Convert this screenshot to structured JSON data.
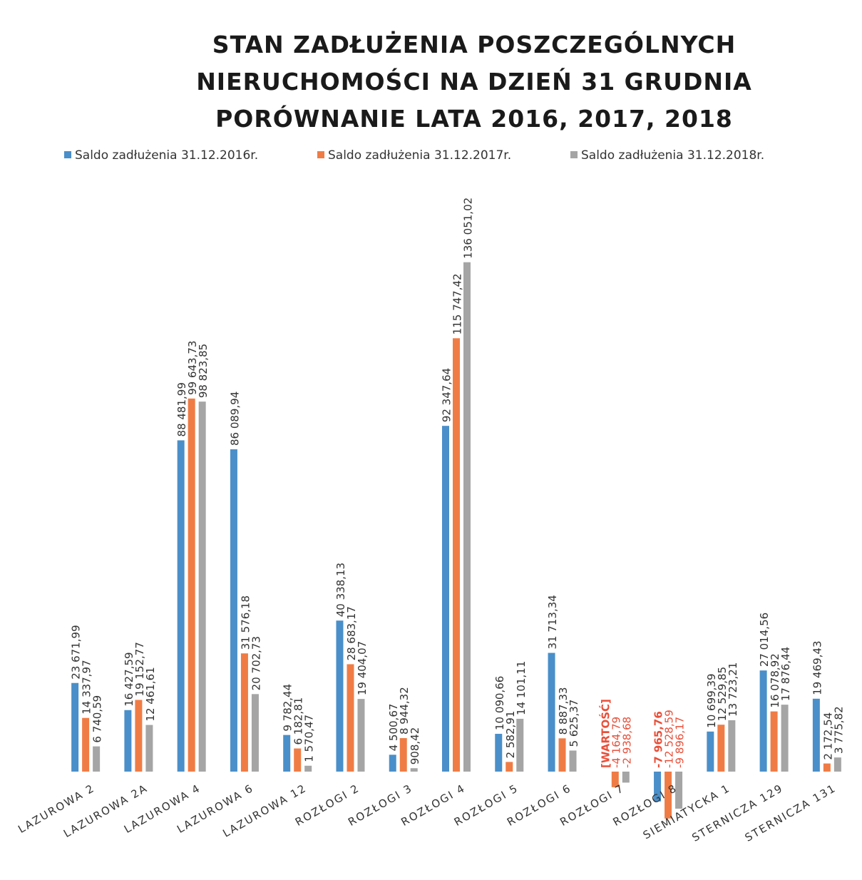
{
  "chart_data": {
    "type": "bar",
    "title": [
      "STAN ZADŁUŻENIA POSZCZEGÓLNYCH",
      "NIERUCHOMOŚCI NA DZIEŃ 31 GRUDNIA",
      "PORÓWNANIE LATA 2016, 2017, 2018"
    ],
    "categories": [
      "LAZUROWA 2",
      "LAZUROWA 2A",
      "LAZUROWA 4",
      "LAZUROWA 6",
      "LAZUROWA 12",
      "ROZŁOGI 2",
      "ROZŁOGI 3",
      "ROZŁOGI 4",
      "ROZŁOGI 5",
      "ROZŁOGI 6",
      "ROZŁOGI 7",
      "ROZŁOGI 8",
      "SIEMIATYCKA 1",
      "STERNICZA 129",
      "STERNICZA 131"
    ],
    "series": [
      {
        "name": "Saldo zadłużenia 31.12.2016r.",
        "color": "#4a8fc9",
        "values": [
          23671.99,
          16427.59,
          88481.99,
          86089.94,
          9782.44,
          40338.13,
          4500.67,
          92347.64,
          10090.66,
          31713.34,
          null,
          -7965.76,
          10699.39,
          27014.56,
          19469.43
        ],
        "value_labels": [
          "23 671,99",
          "16 427,59",
          "88 481,99",
          "86 089,94",
          "9 782,44",
          "40 338,13",
          "4 500,67",
          "92 347,64",
          "10 090,66",
          "31 713,34",
          "[WARTOŚĆ]",
          "-7 965,76",
          "10 699,39",
          "27 014,56",
          "19 469,43"
        ]
      },
      {
        "name": "Saldo zadłużenia 31.12.2017r.",
        "color": "#f07c45",
        "values": [
          14337.97,
          19152.77,
          99643.73,
          31576.18,
          6182.81,
          28683.17,
          8944.32,
          115747.42,
          2582.91,
          8887.33,
          -4164.79,
          -12528.59,
          12529.85,
          16078.92,
          2172.54
        ],
        "value_labels": [
          "14 337,97",
          "19 152,77",
          "99 643,73",
          "31 576,18",
          "6 182,81",
          "28 683,17",
          "8 944,32",
          "115 747,42",
          "2 582,91",
          "8 887,33",
          "-4 164,79",
          "-12 528,59",
          "12 529,85",
          "16 078,92",
          "2 172,54"
        ]
      },
      {
        "name": "Saldo zadłużenia 31.12.2018r.",
        "color": "#a5a5a5",
        "values": [
          6740.59,
          12461.61,
          98823.85,
          20702.73,
          1570.47,
          19404.07,
          908.42,
          136051.02,
          14101.11,
          5625.37,
          -2938.68,
          -9896.17,
          13723.21,
          17876.44,
          3775.82
        ],
        "value_labels": [
          "6 740,59",
          "12 461,61",
          "98 823,85",
          "20 702,73",
          "1 570,47",
          "19 404,07",
          "908,42",
          "136 051,02",
          "14 101,11",
          "5 625,37",
          "-2 938,68",
          "-9 896,17",
          "13 723,21",
          "17 876,44",
          "3 775,82"
        ]
      }
    ],
    "ylim": [
      -20000,
      140000
    ]
  }
}
